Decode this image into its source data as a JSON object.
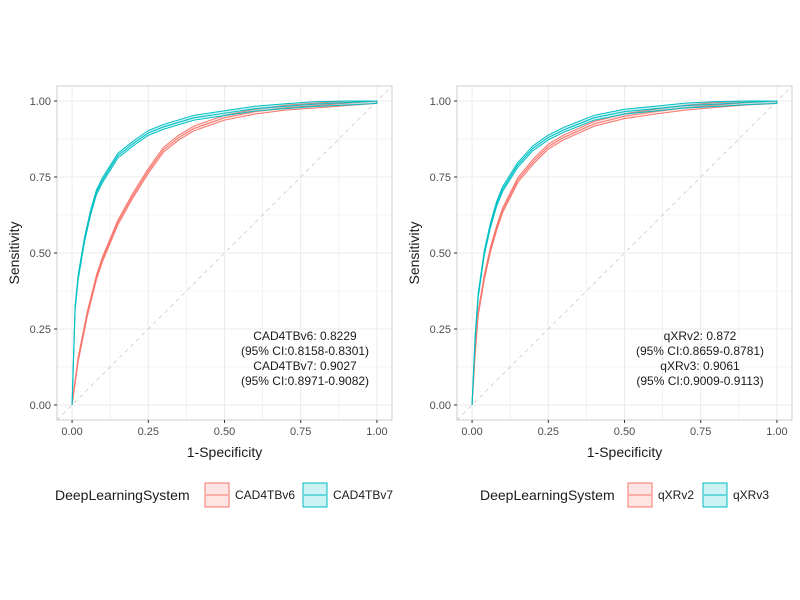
{
  "chart_data": [
    {
      "type": "line",
      "xlabel": "1-Specificity",
      "ylabel": "Sensitivity",
      "xlim": [
        0,
        1
      ],
      "ylim": [
        0,
        1
      ],
      "x_ticks": [
        "0.00",
        "0.25",
        "0.50",
        "0.75",
        "1.00"
      ],
      "y_ticks": [
        "0.00",
        "0.25",
        "0.50",
        "0.75",
        "1.00"
      ],
      "grid": true,
      "reference_line": "diagonal dashed",
      "legend": {
        "title": "DeepLearningSystem",
        "position": "bottom"
      },
      "annotations": [
        "CAD4TBv6: 0.8229",
        "(95% CI:0.8158-0.8301)",
        "CAD4TBv7: 0.9027",
        "(95% CI:0.8971-0.9082)"
      ],
      "series": [
        {
          "name": "CAD4TBv6",
          "color": "#F8766D",
          "x": [
            0,
            0.02,
            0.05,
            0.08,
            0.1,
            0.15,
            0.2,
            0.25,
            0.3,
            0.35,
            0.4,
            0.5,
            0.6,
            0.7,
            0.8,
            0.9,
            1.0
          ],
          "y": [
            0,
            0.15,
            0.3,
            0.42,
            0.48,
            0.6,
            0.69,
            0.77,
            0.84,
            0.88,
            0.91,
            0.945,
            0.965,
            0.978,
            0.985,
            0.993,
            1.0
          ],
          "ci_halfwidth": 0.008
        },
        {
          "name": "CAD4TBv7",
          "color": "#00BFC4",
          "x": [
            0,
            0.01,
            0.02,
            0.04,
            0.06,
            0.08,
            0.1,
            0.15,
            0.2,
            0.25,
            0.3,
            0.4,
            0.5,
            0.6,
            0.7,
            0.8,
            0.9,
            1.0
          ],
          "y": [
            0,
            0.32,
            0.42,
            0.54,
            0.63,
            0.7,
            0.74,
            0.82,
            0.86,
            0.895,
            0.915,
            0.945,
            0.96,
            0.975,
            0.983,
            0.99,
            0.995,
            1.0
          ],
          "ci_halfwidth": 0.008
        }
      ]
    },
    {
      "type": "line",
      "xlabel": "1-Specificity",
      "ylabel": "Sensitivity",
      "xlim": [
        0,
        1
      ],
      "ylim": [
        0,
        1
      ],
      "x_ticks": [
        "0.00",
        "0.25",
        "0.50",
        "0.75",
        "1.00"
      ],
      "y_ticks": [
        "0.00",
        "0.25",
        "0.50",
        "0.75",
        "1.00"
      ],
      "grid": true,
      "reference_line": "diagonal dashed",
      "legend": {
        "title": "DeepLearningSystem",
        "position": "bottom"
      },
      "annotations": [
        "qXRv2: 0.872",
        "(95% CI:0.8659-0.8781)",
        "qXRv3: 0.9061",
        "(95% CI:0.9009-0.9113)"
      ],
      "series": [
        {
          "name": "qXRv2",
          "color": "#F8766D",
          "x": [
            0,
            0.01,
            0.02,
            0.04,
            0.06,
            0.08,
            0.1,
            0.15,
            0.2,
            0.25,
            0.3,
            0.4,
            0.5,
            0.6,
            0.7,
            0.8,
            0.9,
            1.0
          ],
          "y": [
            0,
            0.17,
            0.3,
            0.42,
            0.51,
            0.58,
            0.64,
            0.74,
            0.8,
            0.85,
            0.88,
            0.925,
            0.95,
            0.965,
            0.978,
            0.987,
            0.995,
            1.0
          ],
          "ci_halfwidth": 0.008
        },
        {
          "name": "qXRv3",
          "color": "#00BFC4",
          "x": [
            0,
            0.01,
            0.02,
            0.04,
            0.06,
            0.08,
            0.1,
            0.15,
            0.2,
            0.25,
            0.3,
            0.4,
            0.5,
            0.6,
            0.7,
            0.8,
            0.9,
            1.0
          ],
          "y": [
            0,
            0.22,
            0.36,
            0.5,
            0.59,
            0.66,
            0.71,
            0.79,
            0.845,
            0.88,
            0.905,
            0.945,
            0.965,
            0.975,
            0.985,
            0.99,
            0.996,
            1.0
          ],
          "ci_halfwidth": 0.008
        }
      ]
    }
  ]
}
